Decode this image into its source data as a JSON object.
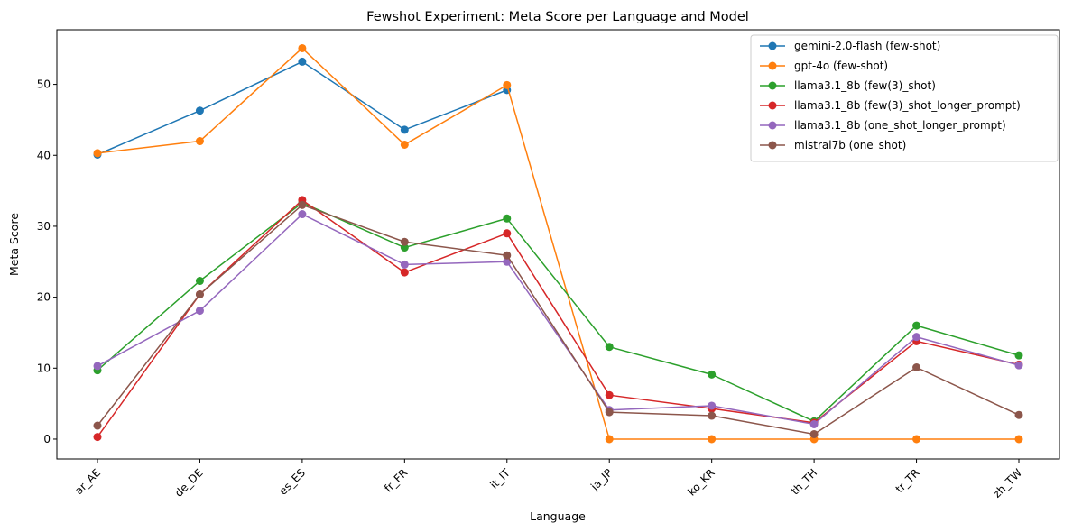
{
  "chart_data": {
    "type": "line",
    "title": "Fewshot Experiment: Meta Score per Language and Model",
    "xlabel": "Language",
    "ylabel": "Meta Score",
    "categories": [
      "ar_AE",
      "de_DE",
      "es_ES",
      "fr_FR",
      "it_IT",
      "ja_JP",
      "ko_KR",
      "th_TH",
      "tr_TR",
      "zh_TW"
    ],
    "yticks": [
      0,
      10,
      20,
      30,
      40,
      50
    ],
    "ylim": [
      -2.8,
      57.7
    ],
    "grid": false,
    "legend_position": "top-right",
    "series": [
      {
        "name": "gemini-2.0-flash (few-shot)",
        "color": "#1f77b4",
        "values": [
          40.1,
          46.3,
          53.2,
          43.6,
          49.2,
          null,
          null,
          null,
          null,
          null
        ]
      },
      {
        "name": "gpt-4o (few-shot)",
        "color": "#ff7f0e",
        "values": [
          40.3,
          42.0,
          55.1,
          41.5,
          49.9,
          0.0,
          0.0,
          0.0,
          0.0,
          0.0
        ]
      },
      {
        "name": "llama3.1_8b (few(3)_shot)",
        "color": "#2ca02c",
        "values": [
          9.7,
          22.3,
          33.3,
          27.0,
          31.1,
          13.0,
          9.1,
          2.5,
          16.0,
          11.8
        ]
      },
      {
        "name": "llama3.1_8b (few(3)_shot_longer_prompt)",
        "color": "#d62728",
        "values": [
          0.3,
          20.4,
          33.7,
          23.5,
          29.0,
          6.2,
          4.3,
          2.3,
          13.8,
          10.5
        ]
      },
      {
        "name": "llama3.1_8b (one_shot_longer_prompt)",
        "color": "#9467bd",
        "values": [
          10.3,
          18.1,
          31.7,
          24.6,
          25.0,
          4.1,
          4.7,
          2.1,
          14.4,
          10.4
        ]
      },
      {
        "name": "mistral7b (one_shot)",
        "color": "#8c564b",
        "values": [
          1.9,
          20.4,
          33.0,
          27.8,
          25.9,
          3.8,
          3.3,
          0.7,
          10.1,
          3.4
        ]
      }
    ]
  }
}
